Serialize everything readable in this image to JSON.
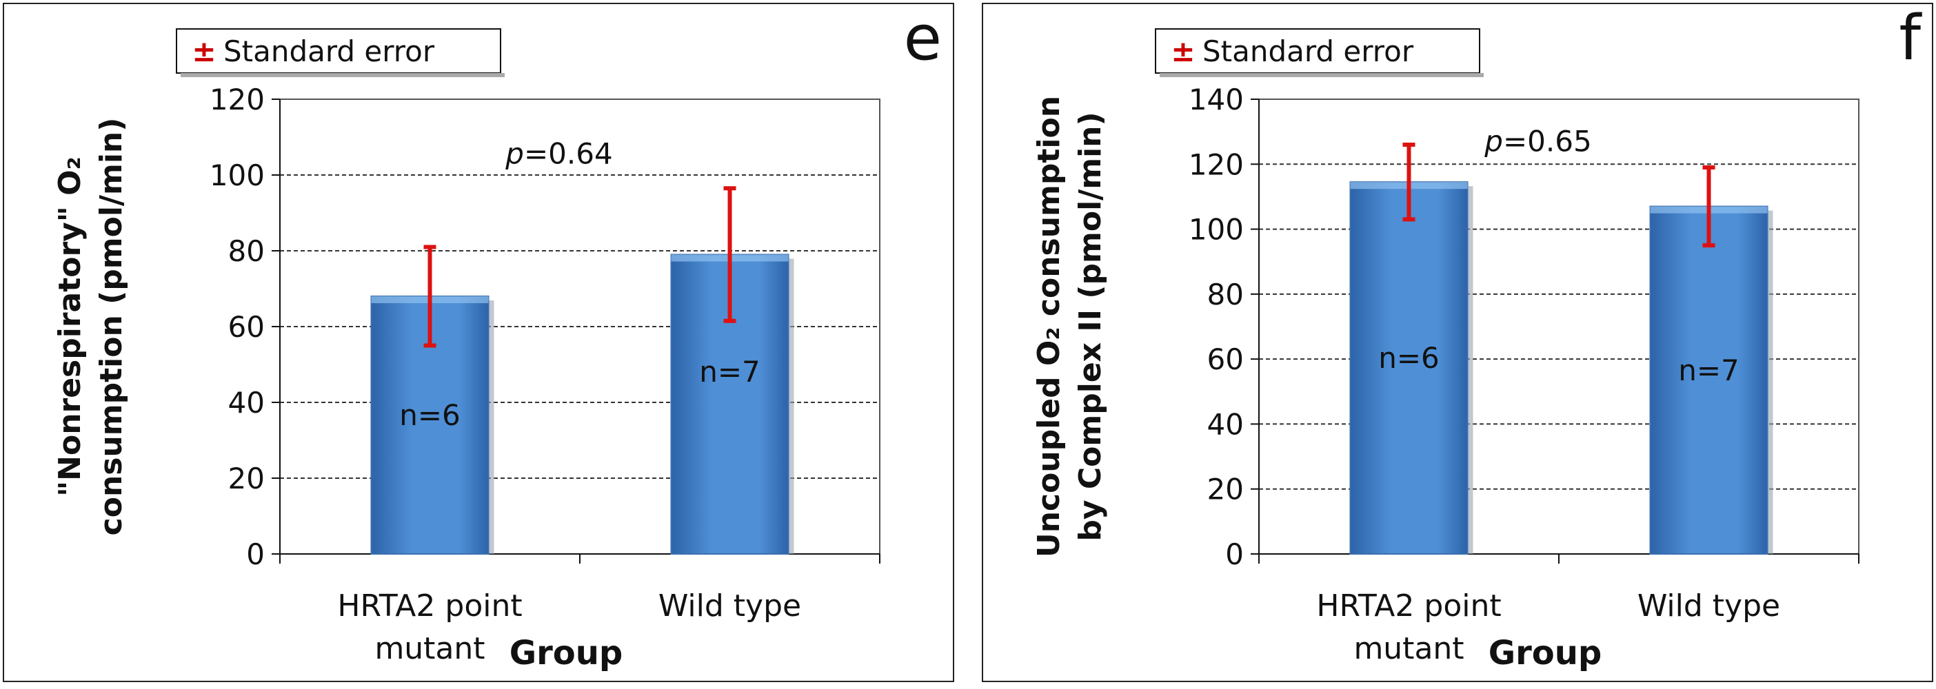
{
  "chart_data": [
    {
      "panel_letter": "e",
      "type": "bar",
      "categories": [
        "HRTA2 point mutant",
        "Wild type"
      ],
      "category_lines": [
        [
          "HRTA2 point",
          "mutant"
        ],
        [
          "Wild type"
        ]
      ],
      "values": [
        68,
        79
      ],
      "error": [
        13,
        17.5
      ],
      "n_labels": [
        "n=6",
        "n=7"
      ],
      "xlabel": "Group",
      "ylabel_lines": [
        "\"Nonrespiratory\" O₂",
        "consumption (pmol/min)"
      ],
      "ylim": [
        0,
        120
      ],
      "yticks": [
        0,
        20,
        40,
        60,
        80,
        100,
        120
      ],
      "p_prefix": "p",
      "p_value": "=0.64",
      "legend_symbol": "±",
      "legend": "Standard error",
      "grid": true,
      "colors": {
        "bar": "#4f8fd6",
        "bar_dark": "#2d63a8",
        "error": "#dd1111",
        "grid": "#333333"
      }
    },
    {
      "panel_letter": "f",
      "type": "bar",
      "categories": [
        "HRTA2 point mutant",
        "Wild type"
      ],
      "category_lines": [
        [
          "HRTA2 point",
          "mutant"
        ],
        [
          "Wild type"
        ]
      ],
      "values": [
        114.5,
        107
      ],
      "error": [
        11.5,
        12
      ],
      "n_labels": [
        "n=6",
        "n=7"
      ],
      "xlabel": "Group",
      "ylabel_lines": [
        "Uncoupled O₂ consumption",
        "by Complex II (pmol/min)"
      ],
      "ylim": [
        0,
        140
      ],
      "yticks": [
        0,
        20,
        40,
        60,
        80,
        100,
        120,
        140
      ],
      "p_prefix": "p",
      "p_value": "=0.65",
      "legend_symbol": "±",
      "legend": "Standard error",
      "grid": true,
      "colors": {
        "bar": "#4f8fd6",
        "bar_dark": "#2d63a8",
        "error": "#dd1111",
        "grid": "#333333"
      }
    }
  ]
}
